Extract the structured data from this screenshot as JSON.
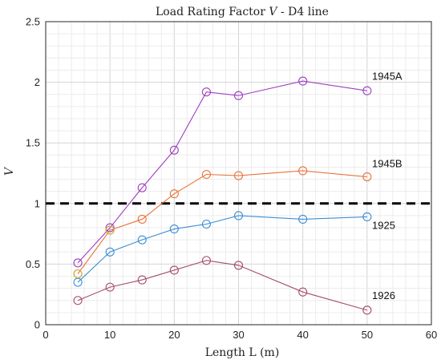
{
  "chart_data": {
    "type": "line",
    "title": "Load Rating Factor V - D4 line",
    "title_prefix": "Load Rating Factor ",
    "title_symbol": "V",
    "title_suffix": " - D4 line",
    "xlabel": "Length L (m)",
    "ylabel": "V",
    "xlim": [
      0,
      60
    ],
    "ylim": [
      0,
      2.5
    ],
    "x_ticks": [
      "0",
      "10",
      "20",
      "30",
      "40",
      "50",
      "60"
    ],
    "y_ticks": [
      "0",
      "0.5",
      "1",
      "1.5",
      "2",
      "2.5"
    ],
    "grid": "major and minor",
    "x": [
      5,
      10,
      15,
      20,
      25,
      30,
      40,
      50
    ],
    "reference_line": {
      "y": 1.0,
      "style": "dashed",
      "color": "#000000"
    },
    "series": [
      {
        "name": "1945A",
        "color": "#9e3fbf",
        "values": [
          0.51,
          0.8,
          1.13,
          1.44,
          1.92,
          1.89,
          2.01,
          1.93
        ]
      },
      {
        "name": "1945B",
        "color": "#e8743b",
        "values": [
          0.42,
          0.78,
          0.87,
          1.08,
          1.24,
          1.23,
          1.27,
          1.22
        ]
      },
      {
        "name": "1925",
        "color": "#3d8fd6",
        "values": [
          0.35,
          0.6,
          0.7,
          0.79,
          0.83,
          0.9,
          0.87,
          0.89
        ]
      },
      {
        "name": "1926",
        "color": "#a64d6e",
        "values": [
          0.2,
          0.31,
          0.37,
          0.45,
          0.53,
          0.49,
          0.27,
          0.12
        ]
      }
    ],
    "extra_markers": [
      {
        "x": 5,
        "y": 0.42,
        "color": "#c9b23a"
      },
      {
        "x": 10,
        "y": 0.78,
        "color": "#c9b23a"
      }
    ]
  }
}
